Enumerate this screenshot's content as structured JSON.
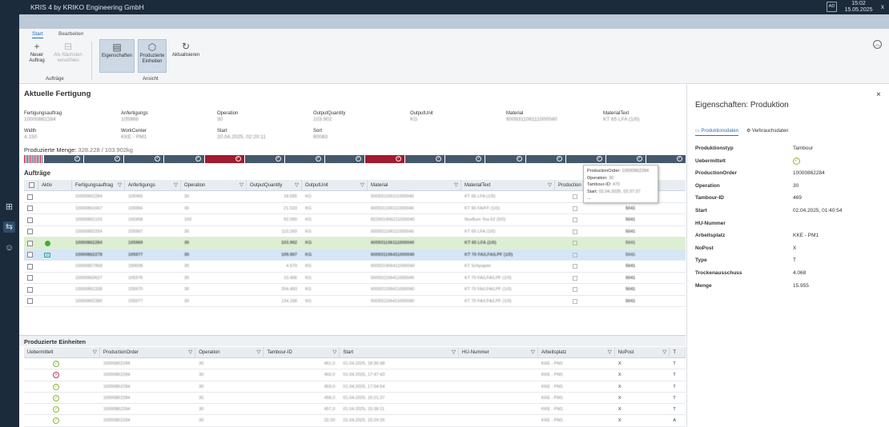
{
  "app": {
    "title": "KRIS 4 by KRIKO Engineering GmbH",
    "user": "AD",
    "time": "15:02",
    "date": "15.05.2025",
    "close": "x"
  },
  "ribbon": {
    "tabs": [
      "Start",
      "Bearbeiten"
    ],
    "buttons": [
      {
        "label1": "Neuer",
        "label2": "Auftrag",
        "icon": "+"
      },
      {
        "label1": "Als Nächsten",
        "label2": "verwöhlen",
        "icon": "⊟"
      },
      {
        "label1": "Eigenschaften",
        "label2": "",
        "icon": "▤"
      },
      {
        "label1": "Produzierte",
        "label2": "Einheiten",
        "icon": "⬡"
      },
      {
        "label1": "Aktualisieren",
        "label2": "",
        "icon": "↻"
      }
    ],
    "groups": [
      "Aufträge",
      "Ansicht"
    ]
  },
  "section": {
    "title": "Aktuelle Fertigung",
    "fields": [
      {
        "label": "Fertigungsauftrag",
        "value": "10000862284"
      },
      {
        "label": "Anfertigungs",
        "value": "105969"
      },
      {
        "label": "Operation",
        "value": "30"
      },
      {
        "label": "OutputQuantity",
        "value": "103.902"
      },
      {
        "label": "OutputUnit",
        "value": "KG"
      },
      {
        "label": "Material",
        "value": "600931106111000040"
      },
      {
        "label": "MaterialText",
        "value": "KT 65 LFA (1/0)"
      },
      {
        "label": "Width",
        "value": "4.150"
      },
      {
        "label": "WorkCenter",
        "value": "KKE - PM1"
      },
      {
        "label": "Start",
        "value": "20.04.2025, 02:20:11"
      },
      {
        "label": "Sort",
        "value": "60083"
      }
    ],
    "produced_label": "Produzierte Menge:",
    "produced_value": "328.228 / 103.902kg"
  },
  "progress": {
    "colors": {
      "blue": "#46596c",
      "red": "#a01c2e"
    },
    "segments": [
      "blue",
      "blue",
      "blue",
      "blue",
      "red",
      "blue",
      "blue",
      "blue",
      "red",
      "blue",
      "blue",
      "blue",
      "blue",
      "blue",
      "blue",
      "blue"
    ]
  },
  "orders": {
    "title": "Aufträge",
    "headers": [
      "Aktiv",
      "Fertigungsauftrag",
      "Anfertigungs",
      "Operation",
      "OutputQuantity",
      "OutputUnit",
      "Material",
      "MaterialText",
      "Production",
      "Width"
    ],
    "rows": [
      {
        "fa": "10000862284",
        "an": "105965",
        "op": "30",
        "qty": "18.555",
        "unit": "KG",
        "mat": "600931106111000040",
        "mt": "KT 65 LFA (1/0)",
        "sort": "",
        "state": ""
      },
      {
        "fa": "10000861667",
        "an": "105966",
        "op": "30",
        "qty": "21.533",
        "unit": "KG",
        "mat": "600931106111000040",
        "mt": "KT 90 FA/FF (1/0)",
        "sort": "5041",
        "state": ""
      },
      {
        "fa": "10000862193",
        "an": "105958",
        "op": "100",
        "qty": "92.090",
        "unit": "KG",
        "mat": "822001906211000040",
        "mt": "Noxflure Tea 62 (0/0)",
        "sort": "5041",
        "state": ""
      },
      {
        "fa": "10000862254",
        "an": "105967",
        "op": "30",
        "qty": "110.260",
        "unit": "KG",
        "mat": "600931106111000040",
        "mt": "KT 65 LFA (1/0)",
        "sort": "5041",
        "state": ""
      },
      {
        "fa": "10000862284",
        "an": "105969",
        "op": "30",
        "qty": "103.902",
        "unit": "KG",
        "mat": "600931106111000040",
        "mt": "KT 65 LFA (1/0)",
        "sort": "5041",
        "state": "active"
      },
      {
        "fa": "10000862278",
        "an": "105977",
        "op": "30",
        "qty": "109.907",
        "unit": "KG",
        "mat": "600931106411000040",
        "mt": "KT 70 FA/LFA/LPF (1/0)",
        "sort": "5041",
        "state": "next"
      },
      {
        "fa": "10000857958",
        "an": "190008",
        "op": "30",
        "qty": "4.570",
        "unit": "KG",
        "mat": "600931906411000040",
        "mt": "KT Schpapier",
        "sort": "5041",
        "state": ""
      },
      {
        "fa": "10000860627",
        "an": "105976",
        "op": "30",
        "qty": "10.406",
        "unit": "KG",
        "mat": "600931106411000040",
        "mt": "KT 70 FA/LFA/LPF (1/0)",
        "sort": "5041",
        "state": ""
      },
      {
        "fa": "10000862338",
        "an": "105970",
        "op": "30",
        "qty": "204.493",
        "unit": "KG",
        "mat": "600931106411000040",
        "mt": "KT 70 FA/LFA/LPF (1/0)",
        "sort": "5041",
        "state": ""
      },
      {
        "fa": "10000862380",
        "an": "105977",
        "op": "30",
        "qty": "134.158",
        "unit": "KG",
        "mat": "600931106411000040",
        "mt": "KT 70 FA/LFA/LPF (1/0)",
        "sort": "5041",
        "state": ""
      }
    ]
  },
  "tooltip": {
    "lines": [
      {
        "k": "ProductionOrder:",
        "v": "10000862284"
      },
      {
        "k": "Operation:",
        "v": "30"
      },
      {
        "k": "Tambour-ID:",
        "v": "470"
      },
      {
        "k": "Start:",
        "v": "02.04.2025, 02:37:37"
      }
    ],
    "more": "..."
  },
  "produced": {
    "title": "Produzierte Einheiten",
    "headers": [
      "Uebermittelt",
      "ProductionOrder",
      "Operation",
      "Tambour-ID",
      "Start",
      "HU-Nummer",
      "Arbeitsplatz",
      "NoPost",
      "T"
    ],
    "rows": [
      {
        "ok": true,
        "po": "10000862284",
        "op": "30",
        "tid": "461,0",
        "start": "01.04.2025, 18:30:48",
        "ap": "KKE - PM1",
        "np": "X",
        "t": "T"
      },
      {
        "ok": false,
        "po": "10000862284",
        "op": "30",
        "tid": "460,0",
        "start": "01.04.2025, 17:47:43",
        "ap": "KKE - PM1",
        "np": "X",
        "t": "T"
      },
      {
        "ok": true,
        "po": "10000862284",
        "op": "30",
        "tid": "459,0",
        "start": "01.04.2025, 17:04:54",
        "ap": "KKE - PM1",
        "np": "X",
        "t": "T"
      },
      {
        "ok": true,
        "po": "10000862284",
        "op": "30",
        "tid": "458,0",
        "start": "01.04.2025, 16:21:37",
        "ap": "KKE - PM1",
        "np": "X",
        "t": "T"
      },
      {
        "ok": true,
        "po": "10000862284",
        "op": "30",
        "tid": "457,0",
        "start": "01.04.2025, 15:38:11",
        "ap": "KKE - PM1",
        "np": "X",
        "t": "T"
      },
      {
        "ok": true,
        "po": "10000862284",
        "op": "30",
        "tid": "32,00",
        "start": "01.04.2025, 15:24:26",
        "ap": "KKE - PM1",
        "np": "X",
        "t": "A"
      }
    ]
  },
  "panel": {
    "title": "Eigenschaften: Produktion",
    "close": "×",
    "tabs": [
      "Produktionsdaten",
      "Verbrauchsdaten"
    ],
    "props": [
      {
        "k": "Produktionstyp",
        "v": "Tambour"
      },
      {
        "k": "Uebermittelt",
        "v": "✓"
      },
      {
        "k": "ProductionOrder",
        "v": "10000862284"
      },
      {
        "k": "Operation",
        "v": "30"
      },
      {
        "k": "Tambour-ID",
        "v": "469"
      },
      {
        "k": "Start",
        "v": "02.04.2025, 01:40:54"
      },
      {
        "k": "HU-Nummer",
        "v": ""
      },
      {
        "k": "Arbeitsplatz",
        "v": "KKE - PM1"
      },
      {
        "k": "NoPost",
        "v": "X"
      },
      {
        "k": "Type",
        "v": "T"
      },
      {
        "k": "Trockenausschuss",
        "v": "4.068"
      },
      {
        "k": "Menge",
        "v": "15.955"
      }
    ]
  }
}
